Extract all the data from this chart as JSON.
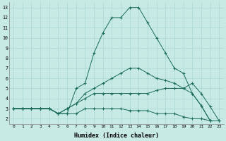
{
  "xlabel": "Humidex (Indice chaleur)",
  "bg_color": "#c8eae5",
  "line_color": "#1a6b5a",
  "grid_color": "#a8d8d0",
  "xlim": [
    -0.5,
    23.5
  ],
  "ylim": [
    1.5,
    13.5
  ],
  "xticks": [
    0,
    1,
    2,
    3,
    4,
    5,
    6,
    7,
    8,
    9,
    10,
    11,
    12,
    13,
    14,
    15,
    16,
    17,
    18,
    19,
    20,
    21,
    22,
    23
  ],
  "yticks": [
    2,
    3,
    4,
    5,
    6,
    7,
    8,
    9,
    10,
    11,
    12,
    13
  ],
  "series": [
    {
      "x": [
        0,
        1,
        2,
        3,
        4,
        5,
        6,
        7,
        8,
        9,
        10,
        11,
        12,
        13,
        14,
        15,
        16,
        17,
        18,
        19,
        20,
        21,
        22,
        23
      ],
      "y": [
        3,
        3,
        3,
        3,
        3,
        2.5,
        2.5,
        2.5,
        3,
        3,
        3,
        3,
        3,
        2.8,
        2.8,
        2.8,
        2.5,
        2.5,
        2.5,
        2.2,
        2,
        2,
        1.8,
        1.8
      ]
    },
    {
      "x": [
        0,
        1,
        2,
        3,
        4,
        5,
        6,
        7,
        8,
        9,
        10,
        11,
        12,
        13,
        14,
        15,
        16,
        17,
        18,
        19,
        20,
        21,
        22,
        23
      ],
      "y": [
        3,
        3,
        3,
        3,
        3,
        2.5,
        3,
        3.5,
        4,
        4.5,
        4.5,
        4.5,
        4.5,
        4.5,
        4.5,
        4.5,
        4.8,
        5,
        5,
        5,
        5.5,
        4.5,
        3.2,
        1.8
      ]
    },
    {
      "x": [
        0,
        1,
        2,
        3,
        4,
        5,
        6,
        7,
        8,
        9,
        10,
        11,
        12,
        13,
        14,
        15,
        16,
        17,
        18,
        19,
        20,
        21,
        22,
        23
      ],
      "y": [
        3,
        3,
        3,
        3,
        3,
        2.5,
        3,
        3.5,
        4.5,
        5,
        5.5,
        6,
        6.5,
        7,
        7,
        6.5,
        6,
        5.8,
        5.5,
        5,
        4.5,
        3.3,
        1.8,
        null
      ]
    },
    {
      "x": [
        0,
        1,
        2,
        3,
        4,
        5,
        6,
        7,
        8,
        9,
        10,
        11,
        12,
        13,
        14,
        15,
        16,
        17,
        18,
        19,
        20,
        21,
        22,
        23
      ],
      "y": [
        3,
        3,
        3,
        3,
        3,
        2.5,
        2.5,
        5,
        5.5,
        8.5,
        10.5,
        12,
        12,
        13,
        13,
        11.5,
        10,
        8.5,
        7,
        6.5,
        4.5,
        3.3,
        1.8,
        null
      ]
    }
  ]
}
